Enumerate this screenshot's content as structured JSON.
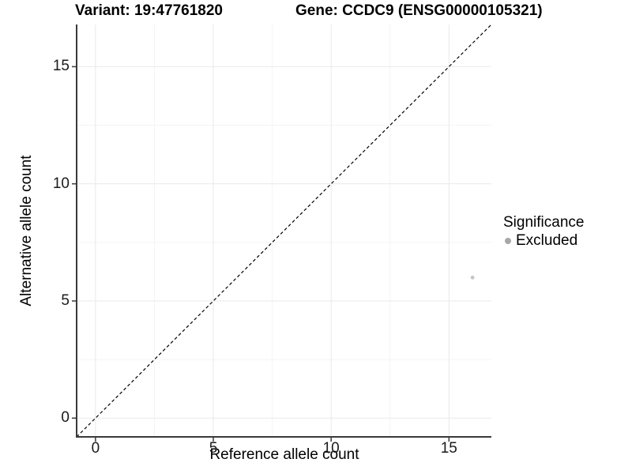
{
  "chart_data": {
    "type": "scatter",
    "title_left": "Variant: 19:47761820",
    "title_right": "Gene: CCDC9 (ENSG00000105321)",
    "xlabel": "Reference allele count",
    "ylabel": "Alternative allele count",
    "xlim": [
      -0.8,
      16.8
    ],
    "ylim": [
      -0.8,
      16.8
    ],
    "x_ticks": [
      0,
      5,
      10,
      15
    ],
    "y_ticks": [
      0,
      5,
      10,
      15
    ],
    "minor_ticks": [
      2.5,
      7.5,
      12.5
    ],
    "grid": true,
    "points": [
      {
        "x": 16,
        "y": 6,
        "series": "Excluded"
      }
    ],
    "identity_line": {
      "style": "dashed",
      "from": -0.8,
      "to": 16.8,
      "color": "#000000"
    },
    "legend": {
      "title": "Significance",
      "position": "right",
      "items": [
        {
          "label": "Excluded",
          "color": "#a8a8a8"
        }
      ]
    },
    "colors": {
      "point": "#c6c6c6",
      "axis": "#3a3a3a",
      "grid_major": "#e9e9e9",
      "grid_minor": "#f4f4f4",
      "background": "#ffffff"
    }
  }
}
